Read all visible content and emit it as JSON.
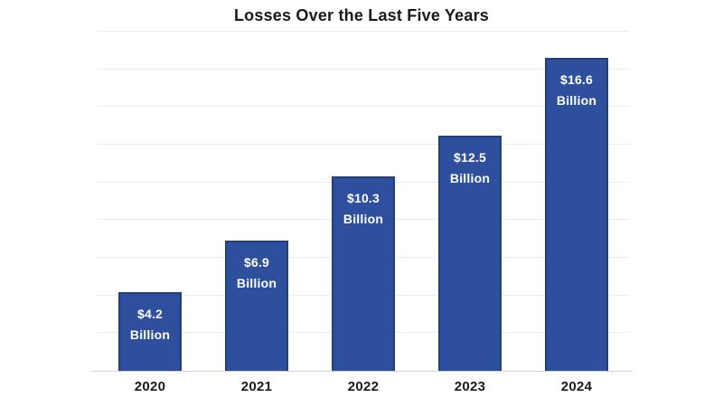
{
  "chart_data": {
    "type": "bar",
    "title": "Losses Over the Last Five Years",
    "categories": [
      "2020",
      "2021",
      "2022",
      "2023",
      "2024"
    ],
    "values": [
      4.2,
      6.9,
      10.3,
      12.5,
      16.6
    ],
    "bar_labels": [
      [
        "$4.2",
        "Billion"
      ],
      [
        "$6.9",
        "Billion"
      ],
      [
        "$10.3",
        "Billion"
      ],
      [
        "$12.5",
        "Billion"
      ],
      [
        "$16.6",
        "Billion"
      ]
    ],
    "xlabel": "",
    "ylabel": "",
    "ylim": [
      0,
      18
    ],
    "gridline_step": 2,
    "grid": true,
    "legend": false,
    "colors": {
      "bar_fill": "#2d4f9e",
      "bar_border": "#22407c",
      "bar_label_text": "#ffffff",
      "gridline": "#ececec",
      "baseline": "#d4d4d4",
      "title_text": "#1a1a1a",
      "axis_label_text": "#1a1a1a",
      "background": "#ffffff"
    }
  }
}
